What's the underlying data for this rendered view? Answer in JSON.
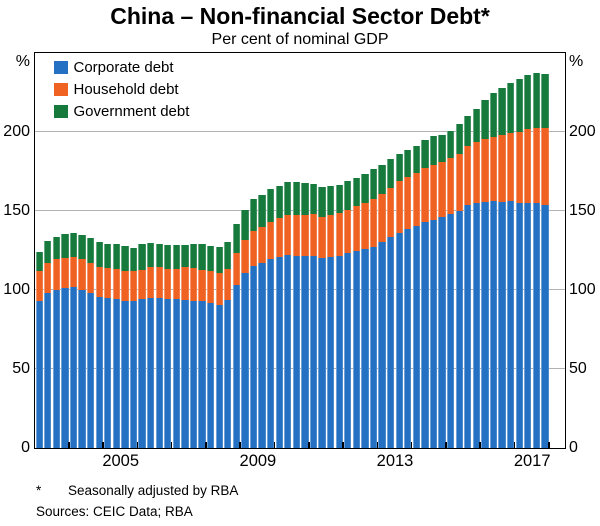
{
  "header": {
    "title": "China – Non-financial Sector Debt*",
    "subtitle": "Per cent of nominal GDP"
  },
  "axes": {
    "unit_left": "%",
    "unit_right": "%"
  },
  "footnotes": {
    "star": "*",
    "star_text": "Seasonally adjusted by RBA",
    "sources": "Sources: CEIC Data; RBA"
  },
  "chart_data": {
    "type": "bar",
    "stacked": true,
    "title": "China – Non-financial Sector Debt*",
    "subtitle": "Per cent of nominal GDP",
    "y_unit": "%",
    "ylim": [
      0,
      250
    ],
    "y_ticks": [
      50,
      100,
      150,
      200
    ],
    "grid": true,
    "legend_position": "top-left",
    "frequency": "quarterly",
    "x_range": "2003 Q1 – 2017 Q4",
    "x_tick_labels": [
      "2005",
      "2009",
      "2013",
      "2017"
    ],
    "categories": [
      "2003 Q1",
      "2003 Q2",
      "2003 Q3",
      "2003 Q4",
      "2004 Q1",
      "2004 Q2",
      "2004 Q3",
      "2004 Q4",
      "2005 Q1",
      "2005 Q2",
      "2005 Q3",
      "2005 Q4",
      "2006 Q1",
      "2006 Q2",
      "2006 Q3",
      "2006 Q4",
      "2007 Q1",
      "2007 Q2",
      "2007 Q3",
      "2007 Q4",
      "2008 Q1",
      "2008 Q2",
      "2008 Q3",
      "2008 Q4",
      "2009 Q1",
      "2009 Q2",
      "2009 Q3",
      "2009 Q4",
      "2010 Q1",
      "2010 Q2",
      "2010 Q3",
      "2010 Q4",
      "2011 Q1",
      "2011 Q2",
      "2011 Q3",
      "2011 Q4",
      "2012 Q1",
      "2012 Q2",
      "2012 Q3",
      "2012 Q4",
      "2013 Q1",
      "2013 Q2",
      "2013 Q3",
      "2013 Q4",
      "2014 Q1",
      "2014 Q2",
      "2014 Q3",
      "2014 Q4",
      "2015 Q1",
      "2015 Q2",
      "2015 Q3",
      "2015 Q4",
      "2016 Q1",
      "2016 Q2",
      "2016 Q3",
      "2016 Q4",
      "2017 Q1",
      "2017 Q2",
      "2017 Q3",
      "2017 Q4"
    ],
    "series": [
      {
        "name": "Corporate debt",
        "color": "#2471C3",
        "values": [
          93,
          97.5,
          100,
          101,
          101.5,
          100,
          97.5,
          95.5,
          94.5,
          94,
          93,
          92.5,
          94,
          94.5,
          94.5,
          94,
          94,
          93.5,
          93,
          92.5,
          91.5,
          90.5,
          93.5,
          103,
          110.5,
          115,
          116.5,
          119,
          120.5,
          122,
          121.5,
          121.5,
          121.5,
          120,
          120.5,
          121.5,
          123,
          124.5,
          125.5,
          127,
          130,
          133,
          136,
          138.5,
          140,
          142.5,
          144,
          146,
          147.5,
          149.5,
          153.5,
          155,
          155.5,
          156,
          155.5,
          156,
          154.5,
          155,
          154.5,
          153.5
        ]
      },
      {
        "name": "Household debt",
        "color": "#F06222",
        "values": [
          19,
          19.5,
          19.5,
          19,
          19,
          19,
          19.5,
          19,
          19,
          19,
          19,
          19,
          18.5,
          19.5,
          19.5,
          19,
          19,
          20.5,
          20.5,
          20,
          20,
          20,
          19.5,
          20,
          21,
          22,
          23,
          24,
          24.5,
          25,
          25.5,
          25.5,
          26,
          26,
          26.5,
          27,
          27.5,
          28.5,
          29.5,
          30.5,
          30.5,
          31.5,
          32.5,
          33,
          34,
          34.5,
          35,
          34.5,
          35.5,
          36.5,
          37.5,
          38.5,
          40,
          40.5,
          42,
          43,
          45.5,
          46.5,
          48,
          48.5
        ]
      },
      {
        "name": "Government debt",
        "color": "#157A3C",
        "values": [
          12,
          13.5,
          14,
          15,
          15.5,
          15.5,
          15.5,
          15.5,
          15.5,
          15.5,
          15.5,
          15,
          16.5,
          15.5,
          15,
          15,
          15,
          14,
          15,
          16,
          16,
          16.5,
          17,
          18.5,
          19,
          20,
          20.5,
          20.5,
          20.5,
          21,
          21,
          20.5,
          19.5,
          19,
          18.5,
          17.5,
          18,
          17.5,
          18,
          18.5,
          18.5,
          18,
          17.5,
          17,
          17,
          17.5,
          18,
          17.5,
          17.5,
          18.5,
          19,
          20.5,
          24.5,
          28,
          30,
          32,
          33,
          34,
          34.5,
          34.5
        ]
      }
    ]
  }
}
